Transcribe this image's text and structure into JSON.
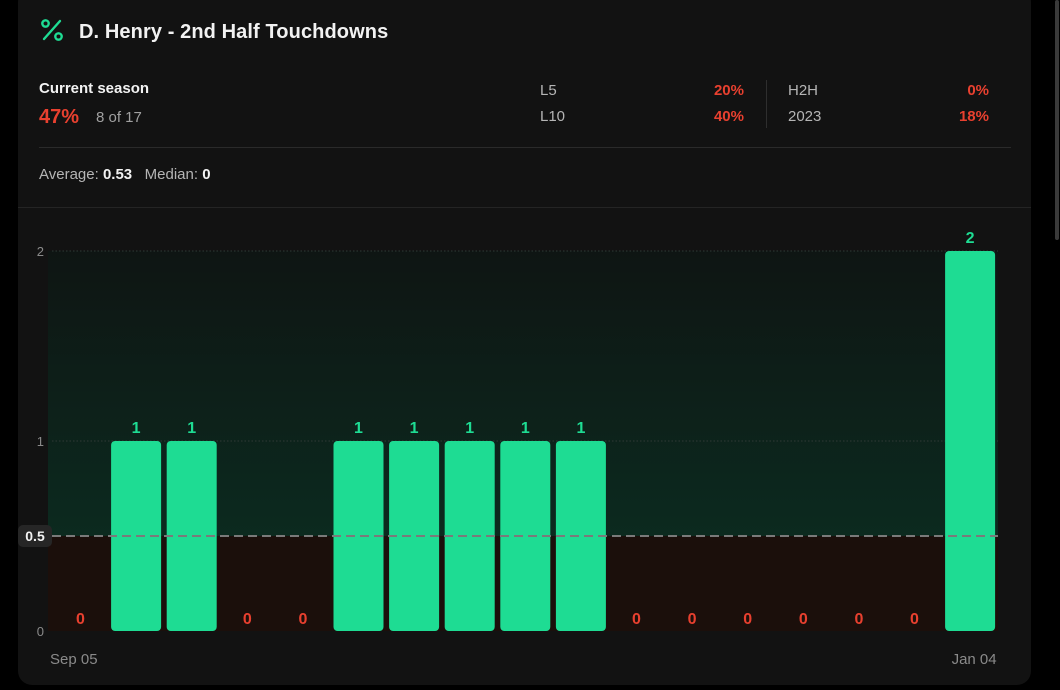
{
  "title": "D. Henry - 2nd Half Touchdowns",
  "season": {
    "label": "Current season",
    "pct": "47%",
    "count": "8 of 17"
  },
  "stats": [
    {
      "label": "L5",
      "value": "20%"
    },
    {
      "label": "L10",
      "value": "40%"
    },
    {
      "label": "H2H",
      "value": "0%"
    },
    {
      "label": "2023",
      "value": "18%"
    }
  ],
  "summary": {
    "average_label": "Average:",
    "average": "0.53",
    "median_label": "Median:",
    "median": "0"
  },
  "colors": {
    "hit": "#1edc93",
    "miss": "#e8402f",
    "text": "#f2f2f2",
    "muted": "#a0a0a0"
  },
  "icons": {
    "title": "percent-icon"
  },
  "chart_data": {
    "type": "bar",
    "categories": [
      "Sep 05",
      "",
      "",
      "",
      "",
      "",
      "",
      "",
      "",
      "",
      "",
      "",
      "",
      "",
      "",
      "",
      "Jan 04"
    ],
    "values": [
      0,
      1,
      1,
      0,
      0,
      1,
      1,
      1,
      1,
      1,
      0,
      0,
      0,
      0,
      0,
      0,
      2
    ],
    "labels": [
      "0",
      "1",
      "1",
      "0",
      "0",
      "1",
      "1",
      "1",
      "1",
      "1",
      "0",
      "0",
      "0",
      "0",
      "0",
      "0",
      "2"
    ],
    "yticks": [
      "0",
      "1",
      "2"
    ],
    "ylim": [
      0,
      2
    ],
    "threshold": 0.5,
    "threshold_label": "0.5",
    "title": "",
    "xlabel": "",
    "ylabel": "",
    "grid": true
  }
}
